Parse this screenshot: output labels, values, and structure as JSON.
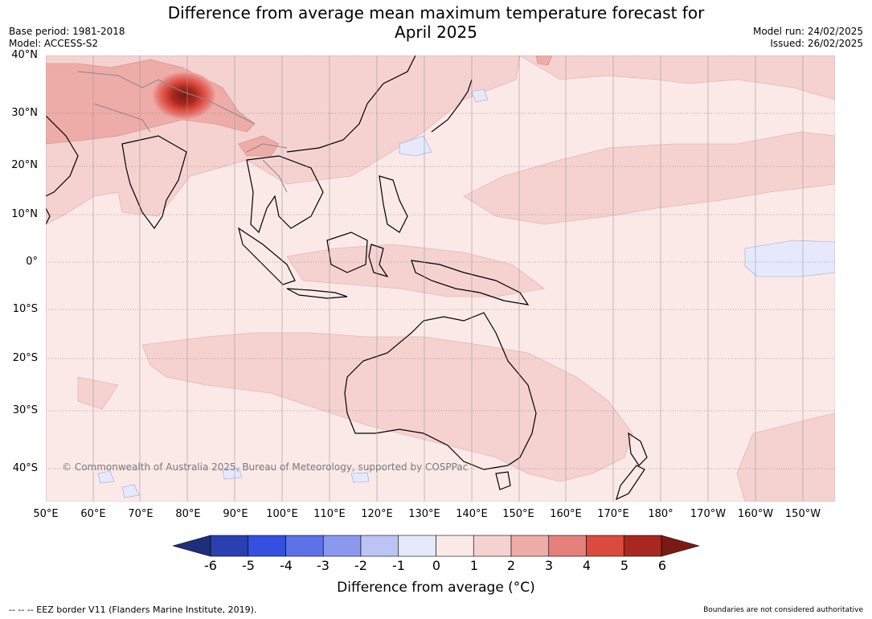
{
  "title": {
    "line1": "Difference from average mean maximum temperature forecast for",
    "line2": "April 2025"
  },
  "meta": {
    "base_period": "Base period: 1981-2018",
    "model": "Model: ACCESS-S2",
    "model_run": "Model run: 24/02/2025",
    "issued": "Issued: 26/02/2025"
  },
  "map": {
    "lat_labels": [
      "40°N",
      "30°N",
      "20°N",
      "10°N",
      "0°",
      "10°S",
      "20°S",
      "30°S",
      "40°S"
    ],
    "lon_labels": [
      "50°E",
      "60°E",
      "70°E",
      "80°E",
      "90°E",
      "100°E",
      "110°E",
      "120°E",
      "130°E",
      "140°E",
      "150°E",
      "160°E",
      "170°E",
      "180°",
      "170°W",
      "160°W",
      "150°W"
    ],
    "copyright": "© Commonwealth of Australia 2025, Bureau of Meteorology, supported by COSPPac"
  },
  "colorbar": {
    "ticks": [
      "-6",
      "-5",
      "-4",
      "-3",
      "-2",
      "-1",
      "0",
      "1",
      "2",
      "3",
      "4",
      "5",
      "6"
    ],
    "label": "Difference from average (°C)",
    "colors": [
      "#1f2d7d",
      "#2a3fb0",
      "#3450e0",
      "#5c72e6",
      "#8a99ee",
      "#bcc4f4",
      "#e6e9fb",
      "#fbe9e8",
      "#f5d2d0",
      "#eeaca8",
      "#e6807a",
      "#dc4a3e",
      "#a8281f",
      "#7a1a14"
    ]
  },
  "footer": {
    "eez_note": "--  --  -- EEZ border V11 (Flanders Marine Institute, 2019).",
    "boundary_note": "Boundaries are not considered authoritative"
  }
}
